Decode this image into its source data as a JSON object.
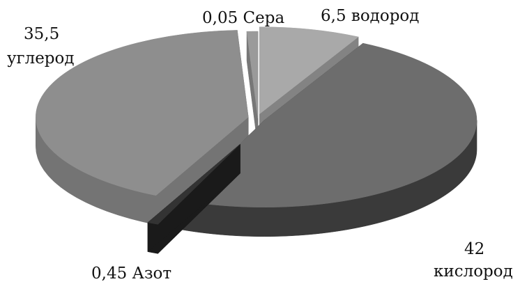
{
  "chart_data": {
    "type": "pie",
    "style": "3d-exploded",
    "slices": [
      {
        "value_label": "6,5",
        "name": "водород",
        "value": 6.5,
        "color": "#a9a9a9",
        "side_color": "#838383"
      },
      {
        "value_label": "42",
        "name": "кислород",
        "value": 42,
        "color": "#6d6d6d",
        "side_color": "#3a3a3a"
      },
      {
        "value_label": "0,45",
        "name": "Азот",
        "value": 0.45,
        "color": "#333333",
        "side_color": "#1a1a1a"
      },
      {
        "value_label": "35,5",
        "name": "углерод",
        "value": 35.5,
        "color": "#8e8e8e",
        "side_color": "#747474"
      },
      {
        "value_label": "0,05",
        "name": "Сера",
        "value": 0.05,
        "color": "#9a9a9a",
        "side_color": "#777777"
      }
    ]
  }
}
